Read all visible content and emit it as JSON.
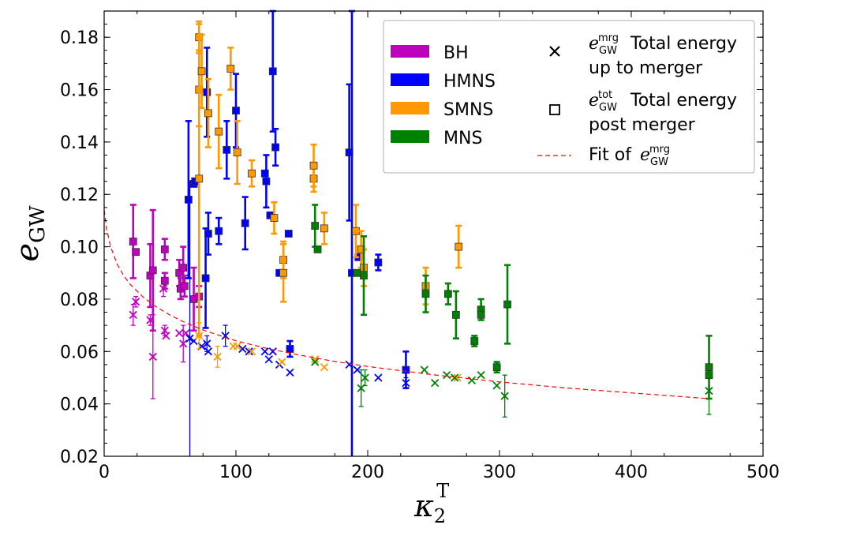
{
  "chart_data": {
    "type": "scatter",
    "xlabel": "κ",
    "xlabel_sub": "2",
    "xlabel_sup": "T",
    "ylabel": "e",
    "ylabel_sub": "GW",
    "xlim": [
      0,
      500
    ],
    "ylim": [
      0.02,
      0.19
    ],
    "x_ticks": [
      0,
      100,
      200,
      300,
      400,
      500
    ],
    "x_tick_labels": [
      "0",
      "100",
      "200",
      "300",
      "400",
      "500"
    ],
    "y_ticks": [
      0.02,
      0.04,
      0.06,
      0.08,
      0.1,
      0.12,
      0.14,
      0.16,
      0.18
    ],
    "y_tick_labels": [
      "0.02",
      "0.04",
      "0.06",
      "0.08",
      "0.10",
      "0.12",
      "0.14",
      "0.16",
      "0.18"
    ],
    "grid": false,
    "legend_position": "top-right",
    "colors": {
      "BH": "#bf00bf",
      "HMNS": "#0000ff",
      "SMNS": "#ff9900",
      "MNS": "#008000",
      "fit": "#ff0000"
    },
    "legend": {
      "categories": [
        {
          "label": "BH",
          "color": "#bf00bf"
        },
        {
          "label": "HMNS",
          "color": "#0000ff"
        },
        {
          "label": "SMNS",
          "color": "#ff9900"
        },
        {
          "label": "MNS",
          "color": "#008000"
        }
      ],
      "markers": [
        {
          "symbol": "x",
          "math": "e",
          "math_sup": "mrg",
          "math_sub": "GW",
          "line1": "Total energy",
          "line2": "up to merger"
        },
        {
          "symbol": "square",
          "math": "e",
          "math_sup": "tot",
          "math_sub": "GW",
          "line1": "Total energy",
          "line2": "post merger"
        },
        {
          "symbol": "dashed",
          "prefix": "Fit of",
          "math": "e",
          "math_sup": "mrg",
          "math_sub": "GW"
        }
      ]
    },
    "series": [
      {
        "name": "BH",
        "color": "#bf00bf",
        "tot": [
          [
            22,
            0.102,
            0.014
          ],
          [
            24,
            0.098,
            0
          ],
          [
            35,
            0.089,
            0.012
          ],
          [
            37,
            0.091,
            0.023
          ],
          [
            46,
            0.099,
            0.004
          ],
          [
            46,
            0.087,
            0.003
          ],
          [
            57,
            0.09,
            0.005
          ],
          [
            58,
            0.084,
            0.004
          ],
          [
            60,
            0.092,
            0.008
          ],
          [
            61,
            0.085,
            0.004
          ],
          [
            68,
            0.08,
            0.012
          ],
          [
            72,
            0.081,
            0.004
          ]
        ],
        "mrg": [
          [
            22,
            0.074,
            0.004
          ],
          [
            24,
            0.079,
            0.002
          ],
          [
            35,
            0.072,
            0.002
          ],
          [
            37,
            0.058,
            0.016
          ],
          [
            45,
            0.084,
            0.003
          ],
          [
            46,
            0.068,
            0.002
          ],
          [
            47,
            0.066,
            0
          ],
          [
            57,
            0.067,
            0
          ],
          [
            60,
            0.063,
            0.007
          ],
          [
            62,
            0.067,
            0
          ]
        ]
      },
      {
        "name": "HMNS",
        "color": "#0000ff",
        "tot": [
          [
            64,
            0.118,
            0.03
          ],
          [
            68,
            0.124,
            0
          ],
          [
            69,
            0.125,
            0
          ],
          [
            77,
            0.088,
            0.019
          ],
          [
            78,
            0.159,
            0.017
          ],
          [
            79,
            0.105,
            0.008
          ],
          [
            87,
            0.106,
            0.005
          ],
          [
            93,
            0.137,
            0.011
          ],
          [
            100,
            0.152,
            0.014
          ],
          [
            107,
            0.109,
            0.01
          ],
          [
            122,
            0.128,
            0
          ],
          [
            123,
            0.125,
            0.01
          ],
          [
            126,
            0.112,
            0
          ],
          [
            128,
            0.167,
            0.023
          ],
          [
            130,
            0.138,
            0.007
          ],
          [
            133,
            0.09,
            0
          ],
          [
            140,
            0.105,
            0
          ],
          [
            141,
            0.061,
            0.003
          ],
          [
            186,
            0.136,
            0.026
          ],
          [
            188,
            0.09,
            0.1
          ],
          [
            193,
            0.096,
            0
          ],
          [
            208,
            0.094,
            0.003
          ],
          [
            229,
            0.053,
            0.007
          ]
        ],
        "mrg": [
          [
            65,
            0.065,
            0.06
          ],
          [
            68,
            0.064,
            0
          ],
          [
            74,
            0.062,
            0
          ],
          [
            78,
            0.063,
            0.003
          ],
          [
            79,
            0.06,
            0
          ],
          [
            92,
            0.066,
            0.004
          ],
          [
            105,
            0.061,
            0
          ],
          [
            110,
            0.06,
            0
          ],
          [
            122,
            0.06,
            0
          ],
          [
            125,
            0.057,
            0
          ],
          [
            128,
            0.06,
            0
          ],
          [
            133,
            0.055,
            0
          ],
          [
            141,
            0.052,
            0
          ],
          [
            186,
            0.055,
            0
          ],
          [
            192,
            0.053,
            0
          ],
          [
            208,
            0.05,
            0
          ],
          [
            229,
            0.048,
            0.002
          ]
        ]
      },
      {
        "name": "SMNS",
        "color": "#ff9900",
        "tot": [
          [
            72,
            0.18,
            0.005
          ],
          [
            72,
            0.16,
            0.014
          ],
          [
            72,
            0.126,
            0.06
          ],
          [
            74,
            0.167,
            0.014
          ],
          [
            79,
            0.151,
            0.013
          ],
          [
            87,
            0.144,
            0.014
          ],
          [
            96,
            0.168,
            0.008
          ],
          [
            101,
            0.136,
            0.012
          ],
          [
            112,
            0.128,
            0.005
          ],
          [
            129,
            0.111,
            0.006
          ],
          [
            136,
            0.095,
            0.007
          ],
          [
            136,
            0.09,
            0.011
          ],
          [
            159,
            0.126,
            0.005
          ],
          [
            159,
            0.131,
            0.008
          ],
          [
            167,
            0.107,
            0.006
          ],
          [
            191,
            0.106,
            0.01
          ],
          [
            195,
            0.099,
            0.007
          ],
          [
            197,
            0.092,
            0.007
          ],
          [
            244,
            0.085,
            0.007
          ],
          [
            269,
            0.1,
            0.008
          ]
        ],
        "mrg": [
          [
            72,
            0.066,
            0.005
          ],
          [
            86,
            0.058,
            0.004
          ],
          [
            98,
            0.062,
            0
          ],
          [
            101,
            0.062,
            0
          ],
          [
            112,
            0.06,
            0
          ],
          [
            135,
            0.056,
            0
          ],
          [
            160,
            0.057,
            0
          ],
          [
            167,
            0.054,
            0
          ],
          [
            268,
            0.05,
            0
          ]
        ]
      },
      {
        "name": "MNS",
        "color": "#008000",
        "tot": [
          [
            160,
            0.108,
            0.008
          ],
          [
            162,
            0.099,
            0
          ],
          [
            192,
            0.09,
            0
          ],
          [
            197,
            0.089,
            0.015
          ],
          [
            244,
            0.082,
            0.007
          ],
          [
            261,
            0.082,
            0.004
          ],
          [
            267,
            0.074,
            0.009
          ],
          [
            281,
            0.064,
            0.002
          ],
          [
            286,
            0.076,
            0.004
          ],
          [
            286,
            0.074,
            0
          ],
          [
            298,
            0.054,
            0.002
          ],
          [
            306,
            0.078,
            0.015
          ],
          [
            459,
            0.054,
            0.012
          ],
          [
            459,
            0.051,
            0
          ]
        ],
        "mrg": [
          [
            160,
            0.056,
            0
          ],
          [
            195,
            0.046,
            0.007
          ],
          [
            198,
            0.05,
            0.003
          ],
          [
            243,
            0.053,
            0
          ],
          [
            251,
            0.048,
            0
          ],
          [
            260,
            0.051,
            0
          ],
          [
            266,
            0.05,
            0
          ],
          [
            279,
            0.049,
            0
          ],
          [
            286,
            0.051,
            0
          ],
          [
            298,
            0.047,
            0
          ],
          [
            304,
            0.043,
            0.008
          ],
          [
            459,
            0.045,
            0.009
          ]
        ]
      }
    ],
    "fit_curve": [
      [
        0,
        0.114
      ],
      [
        2,
        0.1065
      ],
      [
        5,
        0.0999
      ],
      [
        10,
        0.0932
      ],
      [
        15,
        0.0888
      ],
      [
        20,
        0.0855
      ],
      [
        30,
        0.0806
      ],
      [
        40,
        0.0769
      ],
      [
        50,
        0.0739
      ],
      [
        60,
        0.0714
      ],
      [
        75,
        0.0682
      ],
      [
        100,
        0.0641
      ],
      [
        125,
        0.061
      ],
      [
        150,
        0.0585
      ],
      [
        175,
        0.0562
      ],
      [
        200,
        0.0543
      ],
      [
        250,
        0.0511
      ],
      [
        300,
        0.0484
      ],
      [
        350,
        0.0461
      ],
      [
        400,
        0.0442
      ],
      [
        459,
        0.042
      ]
    ]
  }
}
